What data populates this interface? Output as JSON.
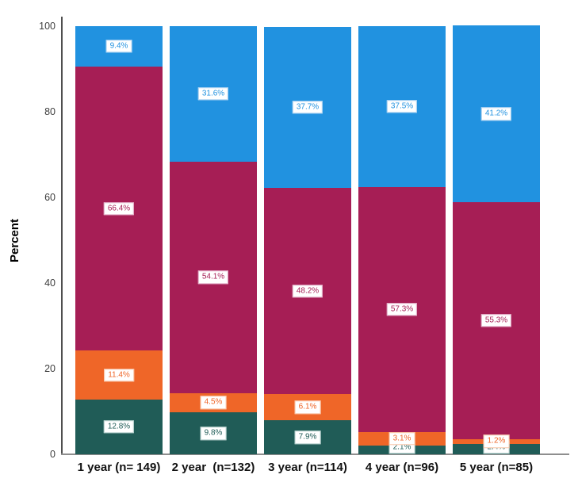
{
  "chart": {
    "background": "#ffffff",
    "y_axis_color": "#4f4f4f",
    "x_axis_color": "#8e8e8e",
    "tick_label_color": "#3d3d3d",
    "category_label_color": "#111111"
  },
  "chart_data": {
    "type": "bar",
    "stacked": true,
    "title": "",
    "xlabel": "",
    "ylabel": "Percent",
    "ylim": [
      0,
      100
    ],
    "yticks": [
      0,
      20,
      40,
      60,
      80,
      100
    ],
    "grid": false,
    "legend": "none",
    "value_label_suffix": "%",
    "categories": [
      "1 year (n= 149)",
      "2 year  (n=132)",
      "3 year (n=114)",
      "4 year (n=96)",
      "5 year (n=85)"
    ],
    "series": [
      {
        "name": "teal",
        "color": "#205c57",
        "label_border": "#b5d0cd",
        "values": [
          12.8,
          9.8,
          7.9,
          2.1,
          2.4
        ]
      },
      {
        "name": "orange",
        "color": "#ef6628",
        "label_border": "#f8c5a8",
        "values": [
          11.4,
          4.5,
          6.1,
          3.1,
          1.2
        ]
      },
      {
        "name": "maroon",
        "color": "#a61e55",
        "label_border": "#e3aec8",
        "values": [
          66.4,
          54.1,
          48.2,
          57.3,
          55.3
        ]
      },
      {
        "name": "blue",
        "color": "#2192e0",
        "label_border": "#a9d0f0",
        "values": [
          9.4,
          31.6,
          37.7,
          37.5,
          41.2
        ]
      }
    ]
  }
}
